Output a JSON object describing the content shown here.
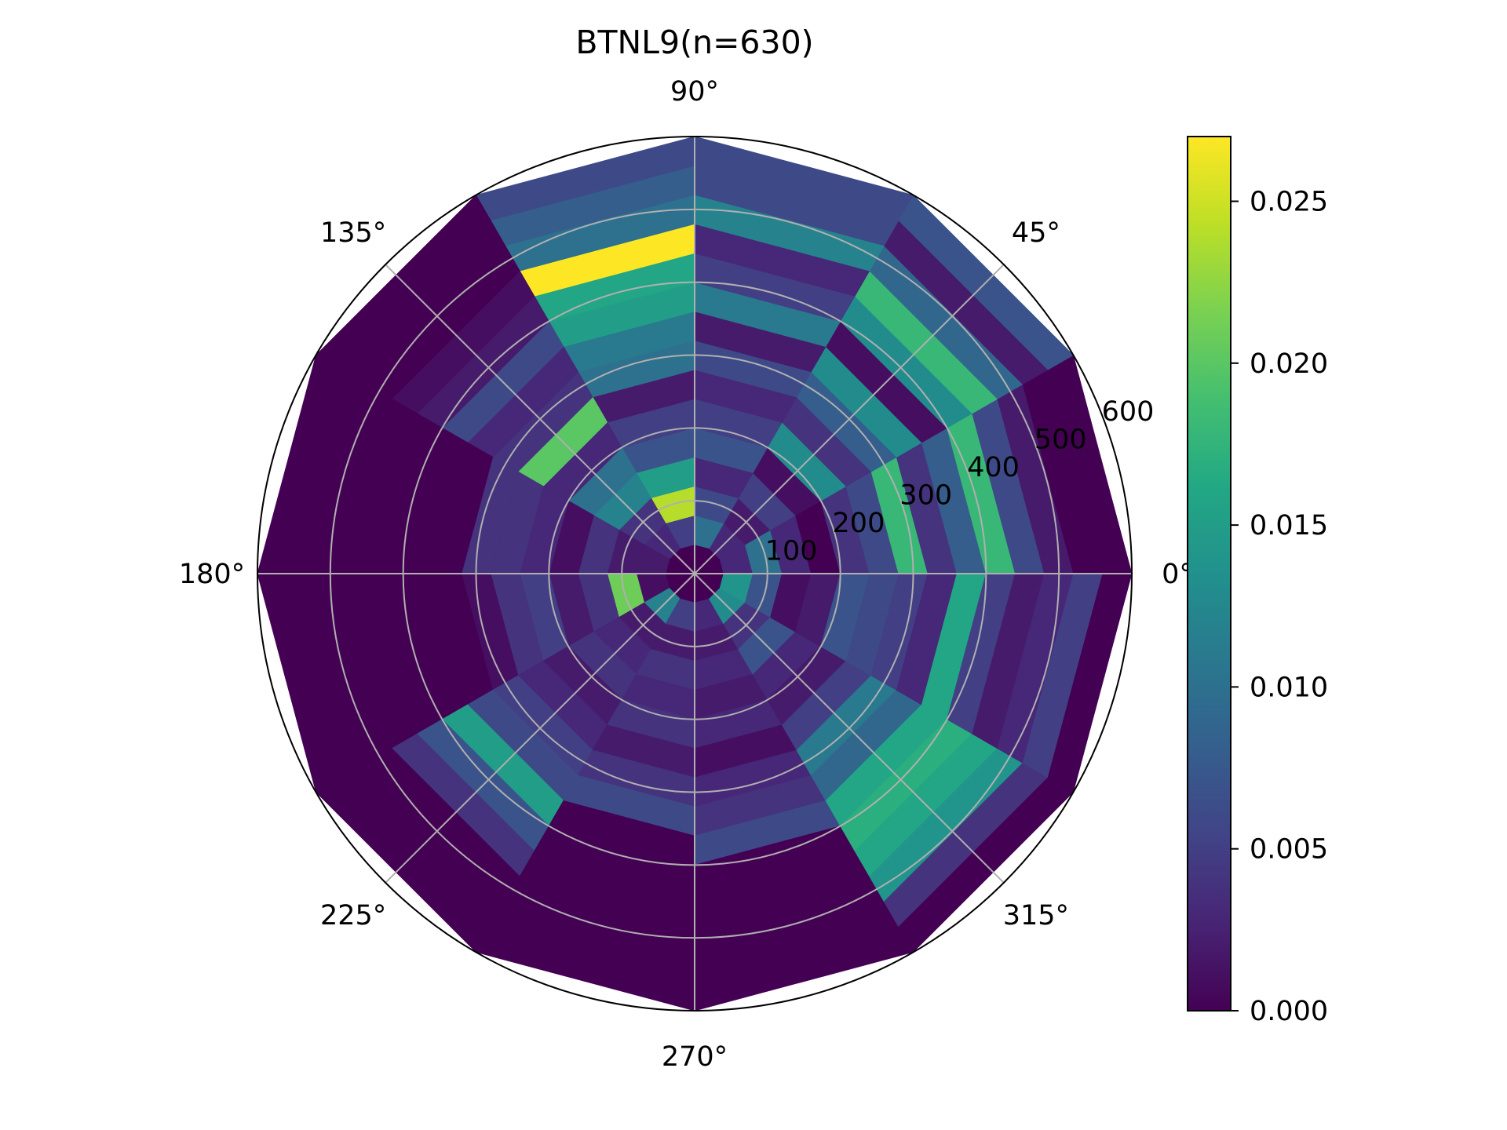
{
  "chart_data": {
    "type": "heatmap",
    "subtype": "polar",
    "title": "BTNL9(n=630)",
    "theta_ticks": [
      "0°",
      "45°",
      "90°",
      "135°",
      "180°",
      "225°",
      "270°",
      "315°"
    ],
    "r_ticks": [
      "100",
      "200",
      "300",
      "400",
      "500",
      "600"
    ],
    "r_tick_values": [
      100,
      200,
      300,
      400,
      500,
      600
    ],
    "r_max": 600,
    "angular_bin_edges_deg": [
      0,
      30,
      60,
      90,
      120,
      150,
      180,
      210,
      240,
      270,
      300,
      330,
      360
    ],
    "radial_bin_edges": [
      0,
      40,
      80,
      120,
      160,
      200,
      240,
      280,
      320,
      360,
      400,
      440,
      480,
      520,
      560,
      600
    ],
    "colormap": "viridis",
    "colorbar": {
      "ticks": [
        "0.000",
        "0.005",
        "0.010",
        "0.015",
        "0.020",
        "0.025"
      ],
      "tick_values": [
        0,
        0.005,
        0.01,
        0.015,
        0.02,
        0.025
      ],
      "min": 0,
      "max": 0.027
    },
    "grid": true,
    "values": [
      [
        0.0,
        0.003,
        0.01,
        0.003,
        0.0,
        0.004,
        0.006,
        0.018,
        0.004,
        0.008,
        0.018,
        0.006,
        0.002,
        0.0,
        0.0
      ],
      [
        0.0,
        0.003,
        0.002,
        0.005,
        0.001,
        0.013,
        0.004,
        0.008,
        0.013,
        0.001,
        0.013,
        0.018,
        0.009,
        0.002,
        0.007
      ],
      [
        0.0,
        0.01,
        0.006,
        0.003,
        0.007,
        0.005,
        0.003,
        0.006,
        0.002,
        0.011,
        0.005,
        0.003,
        0.012,
        0.006,
        0.006
      ],
      [
        0.0,
        0.005,
        0.024,
        0.015,
        0.007,
        0.005,
        0.002,
        0.01,
        0.011,
        0.015,
        0.016,
        0.027,
        0.01,
        0.008,
        0.006
      ],
      [
        0.0,
        0.003,
        0.004,
        0.012,
        0.01,
        0.003,
        0.02,
        0.004,
        0.003,
        0.006,
        0.002,
        0.001,
        0.0,
        0.0,
        0.0
      ],
      [
        0.0,
        0.002,
        0.002,
        0.004,
        0.001,
        0.003,
        0.004,
        0.004,
        0.0,
        0.0,
        0.0,
        0.0,
        0.0,
        0.0,
        0.0
      ],
      [
        0.0,
        0.001,
        0.021,
        0.004,
        0.002,
        0.005,
        0.004,
        0.001,
        0.0,
        0.0,
        0.0,
        0.0,
        0.0,
        0.0,
        0.0
      ],
      [
        0.0,
        0.012,
        0.002,
        0.003,
        0.004,
        0.002,
        0.003,
        0.005,
        0.006,
        0.015,
        0.007,
        0.004,
        0.0,
        0.0,
        0.0
      ],
      [
        0.0,
        0.005,
        0.002,
        0.004,
        0.003,
        0.004,
        0.002,
        0.004,
        0.006,
        0.0,
        0.0,
        0.0,
        0.0,
        0.0,
        0.0
      ],
      [
        0.0,
        0.003,
        0.002,
        0.003,
        0.002,
        0.003,
        0.001,
        0.003,
        0.004,
        0.006,
        0.0,
        0.0,
        0.0,
        0.0,
        0.0
      ],
      [
        0.0,
        0.013,
        0.004,
        0.007,
        0.003,
        0.002,
        0.005,
        0.011,
        0.009,
        0.016,
        0.017,
        0.016,
        0.014,
        0.004,
        0.0
      ],
      [
        0.0,
        0.014,
        0.007,
        0.001,
        0.002,
        0.007,
        0.006,
        0.005,
        0.003,
        0.016,
        0.005,
        0.002,
        0.003,
        0.005,
        0.0
      ]
    ]
  }
}
